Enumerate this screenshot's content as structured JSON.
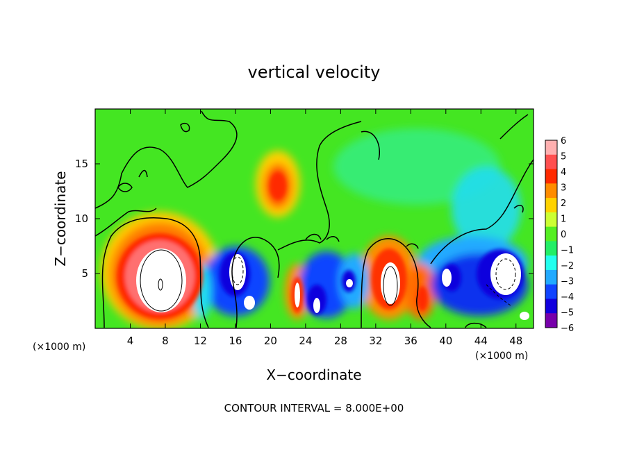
{
  "chart_data": {
    "type": "heatmap",
    "title": "vertical velocity",
    "xlabel": "X−coordinate",
    "ylabel": "Z−coordinate",
    "x_unit_left": "(×1000 m)",
    "x_unit_right": "(×1000 m)",
    "footer": "CONTOUR INTERVAL = 8.000E+00",
    "xlim": [
      0,
      50
    ],
    "ylim": [
      0,
      20
    ],
    "x_ticks": [
      "4",
      "8",
      "12",
      "16",
      "20",
      "24",
      "28",
      "32",
      "36",
      "40",
      "44",
      "48"
    ],
    "x_tick_values": [
      4,
      8,
      12,
      16,
      20,
      24,
      28,
      32,
      36,
      40,
      44,
      48
    ],
    "y_ticks": [
      "5",
      "10",
      "15"
    ],
    "y_tick_values": [
      5,
      10,
      15
    ],
    "colorbar": {
      "labels": [
        "6",
        "5",
        "4",
        "3",
        "2",
        "1",
        "0",
        "−1",
        "−2",
        "−3",
        "−4",
        "−5",
        "−6"
      ],
      "colors": [
        "#ffb0b0",
        "#ff5050",
        "#ff2a00",
        "#ff8c00",
        "#ffd200",
        "#ccff33",
        "#55ee22",
        "#22ee66",
        "#22ffee",
        "#22aaff",
        "#1144ff",
        "#1100dd",
        "#7700aa"
      ]
    },
    "features": [
      {
        "x": 7.5,
        "z": 4.5,
        "value": 12
      },
      {
        "x": 21,
        "z": 12.5,
        "value": 4
      },
      {
        "x": 16,
        "z": 5,
        "value": -10
      },
      {
        "x": 23.5,
        "z": 3,
        "value": 5
      },
      {
        "x": 26,
        "z": 4,
        "value": -5
      },
      {
        "x": 33.5,
        "z": 4.5,
        "value": 9
      },
      {
        "x": 37.5,
        "z": 3,
        "value": 4
      },
      {
        "x": 42,
        "z": 5,
        "value": -5
      },
      {
        "x": 47,
        "z": 5,
        "value": -9
      }
    ]
  }
}
